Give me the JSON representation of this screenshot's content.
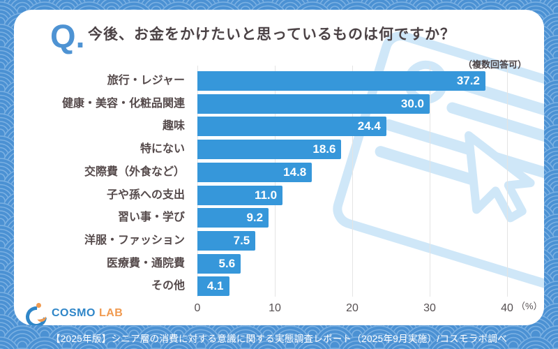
{
  "header": {
    "q_mark": "Q.",
    "title": "今後、お金をかけたいと思っているものは何ですか？"
  },
  "chart_data": {
    "type": "bar",
    "orientation": "horizontal",
    "title": "今後、お金をかけたいと思っているものは何ですか？",
    "note": "（複数回答可）",
    "categories": [
      "旅行・レジャー",
      "健康・美容・化粧品関連",
      "趣味",
      "特にない",
      "交際費（外食など）",
      "子や孫への支出",
      "習い事・学び",
      "洋服・ファッション",
      "医療費・通院費",
      "その他"
    ],
    "values": [
      37.2,
      30.0,
      24.4,
      18.6,
      14.8,
      11.0,
      9.2,
      7.5,
      5.6,
      4.1
    ],
    "value_labels": [
      "37.2",
      "30.0",
      "24.4",
      "18.6",
      "14.8",
      "11.0",
      "9.2",
      "7.5",
      "5.6",
      "4.1"
    ],
    "x_ticks": [
      0,
      10,
      20,
      30,
      40
    ],
    "x_tick_labels": [
      "0",
      "10",
      "20",
      "30",
      "40"
    ],
    "x_unit": "（%）",
    "xlim": [
      0,
      40
    ],
    "grid": true,
    "legend": null,
    "bar_color": "#3697da",
    "value_label_color": "#ffffff"
  },
  "watermark": {
    "icon": "survey-sheet-and-cursor-icon",
    "color": "#cfe7f8"
  },
  "logo": {
    "cosmo": "COSMO",
    "lab": "LAB"
  },
  "footer": {
    "text": "【2025年版】シニア層の消費に対する意識に関する実態調査レポート（2025年9月実施）/コスモラボ調べ"
  },
  "colors": {
    "background": "#4b91d3",
    "card": "#ffffff",
    "accent_blue": "#4e93d3",
    "text_dark": "#4b4245"
  }
}
